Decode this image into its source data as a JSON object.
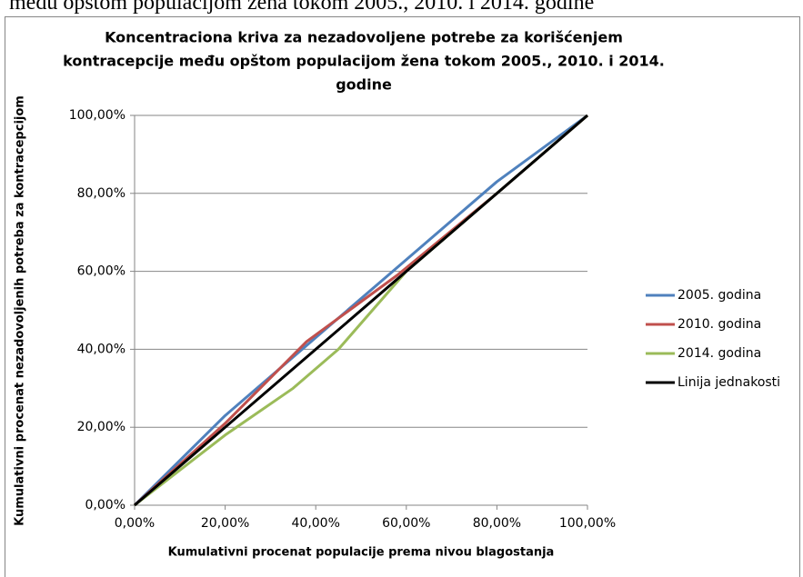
{
  "caption": "među opštom populacijom žena tokom 2005., 2010. i 2014. godine",
  "chart_data": {
    "type": "line",
    "title": [
      "Koncentraciona kriva za nezadovoljene potrebe za korišćenjem",
      "kontracepcije među opštom populacijom  žena tokom 2005., 2010. i 2014.",
      "godine"
    ],
    "x_label": "Kumulativni procenat populacije prema nivou blagostanja",
    "y_label": "Kumulativni procenat nezadovoljenih potreba za kontracepcijom",
    "xlim": [
      0,
      100
    ],
    "ylim": [
      0,
      100
    ],
    "xticks": [
      {
        "value": 0,
        "label": "0,00%"
      },
      {
        "value": 20,
        "label": "20,00%"
      },
      {
        "value": 40,
        "label": "40,00%"
      },
      {
        "value": 60,
        "label": "60,00%"
      },
      {
        "value": 80,
        "label": "80,00%"
      },
      {
        "value": 100,
        "label": "100,00%"
      }
    ],
    "yticks": [
      {
        "value": 0,
        "label": "0,00%"
      },
      {
        "value": 20,
        "label": "20,00%"
      },
      {
        "value": 40,
        "label": "40,00%"
      },
      {
        "value": 60,
        "label": "60,00%"
      },
      {
        "value": 80,
        "label": "80,00%"
      },
      {
        "value": 100,
        "label": "100,00%"
      }
    ],
    "grid": true,
    "legend": "right",
    "series": [
      {
        "name": "2005. godina",
        "color": "#4f81bd",
        "x": [
          0,
          20,
          40,
          60,
          80,
          100
        ],
        "values": [
          0,
          23,
          43,
          63,
          83,
          100
        ]
      },
      {
        "name": "2010. godina",
        "color": "#c0504d",
        "x": [
          0,
          20,
          38,
          58,
          80,
          100
        ],
        "values": [
          0,
          21,
          42,
          59,
          80,
          100
        ]
      },
      {
        "name": "2014. godina",
        "color": "#9bbb59",
        "x": [
          0,
          20,
          35,
          45,
          60,
          80,
          100
        ],
        "values": [
          0,
          18,
          30,
          40,
          60,
          80,
          100
        ]
      },
      {
        "name": "Linija jednakosti",
        "color": "#000000",
        "x": [
          0,
          100
        ],
        "values": [
          0,
          100
        ]
      }
    ]
  }
}
